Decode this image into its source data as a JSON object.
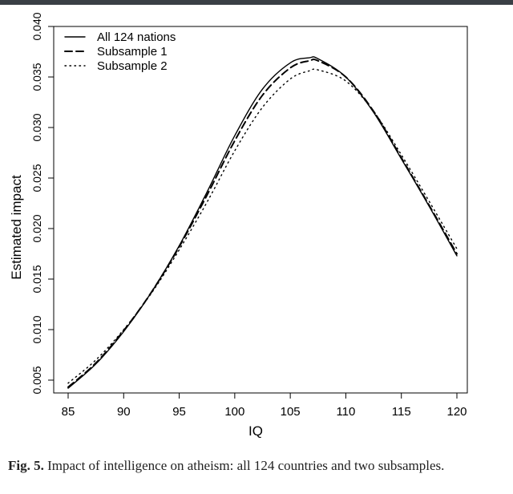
{
  "caption": {
    "label": "Fig. 5.",
    "text": "Impact of intelligence on atheism: all 124 countries and two subsamples."
  },
  "chart_data": {
    "type": "line",
    "title": "",
    "xlabel": "IQ",
    "ylabel": "Estimated impact",
    "xlim": [
      85,
      120
    ],
    "ylim": [
      0.004,
      0.0405
    ],
    "xticks": [
      85,
      90,
      95,
      100,
      105,
      110,
      115,
      120
    ],
    "yticks": [
      0.005,
      0.01,
      0.015,
      0.02,
      0.025,
      0.03,
      0.035,
      0.04
    ],
    "ytick_labels": [
      "0.005",
      "0.010",
      "0.015",
      "0.020",
      "0.025",
      "0.030",
      "0.035",
      "0.040"
    ],
    "legend_position": "top-left",
    "grid": false,
    "x": [
      85,
      87.5,
      90,
      92.5,
      95,
      97.5,
      100,
      102.5,
      105,
      106.7,
      107.5,
      110,
      112.5,
      115,
      117.5,
      120
    ],
    "series": [
      {
        "name": "All 124 nations",
        "style": "solid",
        "values": [
          0.0042,
          0.0066,
          0.0098,
          0.0137,
          0.0183,
          0.0236,
          0.0292,
          0.0338,
          0.0364,
          0.0369,
          0.0368,
          0.035,
          0.0315,
          0.0269,
          0.0222,
          0.0173
        ]
      },
      {
        "name": "Subsample 1",
        "style": "dashed",
        "values": [
          0.0043,
          0.0067,
          0.0099,
          0.0137,
          0.0182,
          0.0233,
          0.0287,
          0.0332,
          0.0359,
          0.0366,
          0.0366,
          0.035,
          0.0316,
          0.027,
          0.0223,
          0.0175
        ]
      },
      {
        "name": "Subsample 2",
        "style": "dotted",
        "values": [
          0.0047,
          0.007,
          0.01,
          0.0136,
          0.0179,
          0.0226,
          0.0277,
          0.032,
          0.0348,
          0.0356,
          0.0357,
          0.0346,
          0.0316,
          0.0273,
          0.0227,
          0.018
        ]
      }
    ]
  }
}
